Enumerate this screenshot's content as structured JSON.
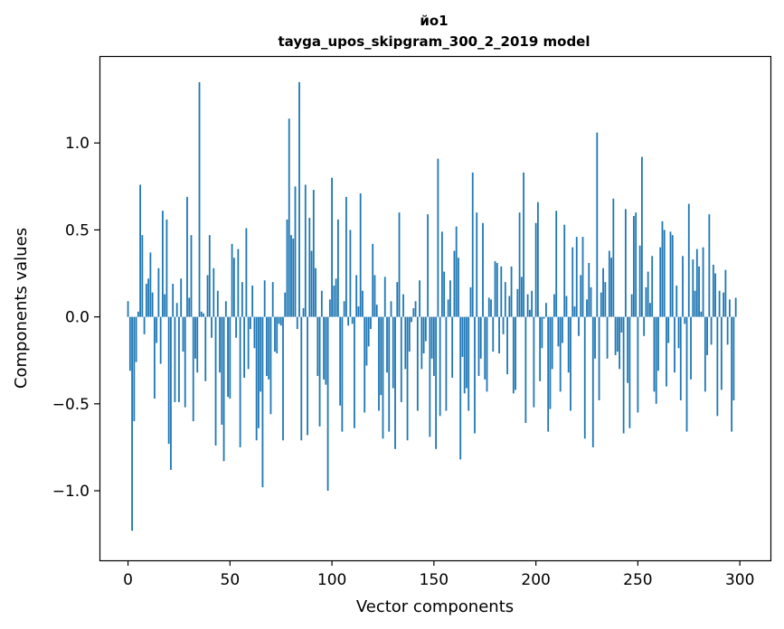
{
  "chart_data": {
    "type": "bar",
    "title": "йо1",
    "subtitle": "tayga_upos_skipgram_300_2_2019 model",
    "xlabel": "Vector components",
    "ylabel": "Components values",
    "xlim": [
      -14,
      315
    ],
    "ylim": [
      -1.4,
      1.5
    ],
    "xticks": [
      0,
      50,
      100,
      150,
      200,
      250,
      300
    ],
    "yticks": [
      -1.0,
      -0.5,
      0.0,
      0.5,
      1.0
    ],
    "ytick_labels": [
      "−1.0",
      "−0.5",
      "0.0",
      "0.5",
      "1.0"
    ],
    "grid": false,
    "legend": "none",
    "bar_color": "#1f77b4",
    "values": [
      0.09,
      -0.31,
      -1.23,
      -0.6,
      -0.26,
      0.03,
      0.76,
      0.47,
      -0.1,
      0.19,
      0.22,
      0.37,
      0.14,
      -0.47,
      -0.15,
      0.28,
      -0.27,
      0.61,
      0.13,
      0.56,
      -0.73,
      -0.88,
      0.19,
      -0.49,
      0.08,
      -0.49,
      0.22,
      -0.2,
      -0.52,
      0.69,
      0.11,
      0.47,
      -0.6,
      -0.24,
      -0.32,
      1.35,
      0.03,
      0.02,
      -0.37,
      0.24,
      0.47,
      -0.12,
      0.28,
      -0.74,
      0.15,
      -0.32,
      -0.62,
      -0.83,
      0.09,
      -0.46,
      -0.47,
      0.42,
      0.34,
      -0.12,
      0.39,
      -0.75,
      0.2,
      -0.35,
      0.51,
      -0.3,
      -0.07,
      0.18,
      -0.18,
      -0.71,
      -0.64,
      -0.43,
      -0.98,
      0.21,
      -0.34,
      -0.36,
      -0.56,
      0.2,
      -0.2,
      -0.21,
      -0.04,
      -0.05,
      -0.71,
      0.14,
      0.56,
      1.14,
      0.47,
      0.45,
      0.75,
      -0.07,
      1.35,
      -0.71,
      0.05,
      0.76,
      -0.68,
      0.57,
      0.38,
      0.73,
      0.28,
      -0.34,
      -0.63,
      0.15,
      -0.36,
      -0.39,
      -1.0,
      0.1,
      0.8,
      0.18,
      0.22,
      0.56,
      -0.51,
      -0.66,
      0.09,
      0.69,
      -0.05,
      0.5,
      -0.04,
      -0.64,
      0.24,
      0.06,
      0.71,
      0.15,
      -0.55,
      -0.28,
      -0.17,
      -0.07,
      0.42,
      0.24,
      0.07,
      -0.54,
      -0.45,
      -0.7,
      0.23,
      -0.32,
      -0.66,
      0.09,
      -0.41,
      -0.76,
      0.2,
      0.6,
      -0.49,
      0.13,
      -0.3,
      -0.71,
      -0.2,
      -0.03,
      0.05,
      0.09,
      -0.54,
      0.21,
      -0.3,
      -0.21,
      -0.14,
      0.59,
      -0.69,
      -0.24,
      -0.34,
      -0.76,
      0.91,
      -0.57,
      0.49,
      0.26,
      -0.54,
      0.1,
      0.21,
      -0.35,
      0.38,
      0.52,
      0.34,
      -0.82,
      -0.23,
      -0.44,
      -0.41,
      -0.54,
      0.17,
      0.83,
      -0.67,
      0.6,
      -0.34,
      -0.24,
      0.54,
      -0.36,
      -0.43,
      0.11,
      0.1,
      -0.2,
      0.32,
      0.31,
      -0.21,
      0.29,
      -0.1,
      0.2,
      -0.33,
      0.12,
      0.29,
      -0.44,
      -0.42,
      0.16,
      0.6,
      0.23,
      0.83,
      -0.61,
      0.13,
      0.04,
      0.15,
      -0.52,
      0.54,
      0.66,
      -0.37,
      -0.18,
      -0.01,
      0.08,
      -0.66,
      -0.53,
      -0.3,
      0.13,
      0.61,
      -0.17,
      -0.43,
      -0.15,
      0.53,
      0.12,
      -0.32,
      -0.54,
      0.4,
      0.06,
      0.46,
      -0.11,
      0.24,
      0.46,
      -0.7,
      0.1,
      0.31,
      0.17,
      -0.75,
      -0.24,
      1.06,
      -0.48,
      0.14,
      0.28,
      0.2,
      -0.24,
      0.38,
      0.34,
      0.68,
      -0.22,
      -0.2,
      -0.3,
      -0.09,
      -0.67,
      0.62,
      -0.38,
      -0.64,
      0.13,
      0.58,
      0.6,
      -0.55,
      0.41,
      0.92,
      -0.11,
      0.17,
      0.26,
      0.08,
      0.35,
      -0.43,
      -0.5,
      -0.31,
      0.4,
      0.55,
      0.5,
      -0.4,
      -0.15,
      0.49,
      0.47,
      -0.32,
      0.18,
      -0.18,
      -0.48,
      0.35,
      -0.04,
      -0.66,
      0.65,
      -0.36,
      0.33,
      0.15,
      0.39,
      0.29,
      0.03,
      0.4,
      -0.43,
      -0.22,
      0.59,
      -0.16,
      0.3,
      0.25,
      -0.57,
      0.15,
      -0.42,
      0.14,
      0.27,
      -0.16,
      0.1,
      -0.66,
      -0.48,
      0.11
    ]
  }
}
